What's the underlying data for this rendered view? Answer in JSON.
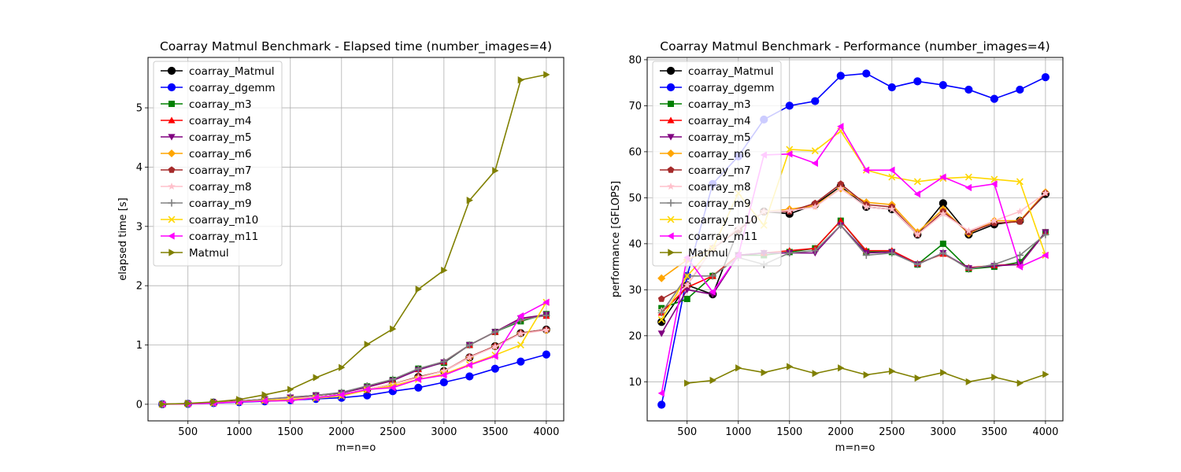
{
  "chart_data": [
    {
      "type": "line",
      "title": "Coarray Matmul Benchmark - Elapsed time (number_images=4)",
      "xlabel": "m=n=o",
      "ylabel": "elapsed time [s]",
      "xlim": [
        110,
        4170
      ],
      "ylim": [
        -0.28,
        5.85
      ],
      "xticks": [
        500,
        1000,
        1500,
        2000,
        2500,
        3000,
        3500,
        4000
      ],
      "yticks": [
        0,
        1,
        2,
        3,
        4,
        5
      ],
      "grid": true,
      "legend_position": "upper-left",
      "x": [
        250,
        500,
        750,
        1000,
        1250,
        1500,
        1750,
        2000,
        2250,
        2500,
        2750,
        3000,
        3250,
        3500,
        3750,
        4000
      ],
      "series": [
        {
          "name": "coarray_Matmul",
          "color": "#000000",
          "marker": "circle",
          "values": [
            0.001,
            0.008,
            0.028,
            0.045,
            0.067,
            0.094,
            0.12,
            0.16,
            0.25,
            0.34,
            0.46,
            0.56,
            0.79,
            0.98,
            1.2,
            1.26
          ]
        },
        {
          "name": "coarray_dgemm",
          "color": "#0000ff",
          "marker": "circle",
          "values": [
            0.001,
            0.006,
            0.02,
            0.035,
            0.05,
            0.07,
            0.09,
            0.11,
            0.15,
            0.22,
            0.28,
            0.37,
            0.47,
            0.6,
            0.72,
            0.84
          ]
        },
        {
          "name": "coarray_m3",
          "color": "#008000",
          "marker": "square",
          "values": [
            0.001,
            0.009,
            0.025,
            0.053,
            0.083,
            0.11,
            0.15,
            0.19,
            0.3,
            0.41,
            0.6,
            0.7,
            1.0,
            1.22,
            1.4,
            1.52
          ]
        },
        {
          "name": "coarray_m4",
          "color": "#ff0000",
          "marker": "triangle-up",
          "values": [
            0.001,
            0.009,
            0.026,
            0.053,
            0.082,
            0.11,
            0.15,
            0.19,
            0.29,
            0.4,
            0.59,
            0.72,
            1.0,
            1.22,
            1.45,
            1.49
          ]
        },
        {
          "name": "coarray_m5",
          "color": "#800080",
          "marker": "triangle-down",
          "values": [
            0.001,
            0.009,
            0.029,
            0.054,
            0.083,
            0.115,
            0.15,
            0.19,
            0.29,
            0.4,
            0.58,
            0.71,
            1.0,
            1.22,
            1.45,
            1.51
          ]
        },
        {
          "name": "coarray_m6",
          "color": "#ffa500",
          "marker": "diamond",
          "values": [
            0.001,
            0.007,
            0.024,
            0.045,
            0.067,
            0.093,
            0.12,
            0.16,
            0.25,
            0.34,
            0.46,
            0.56,
            0.79,
            0.98,
            1.2,
            1.25
          ]
        },
        {
          "name": "coarray_m7",
          "color": "#a52a2a",
          "marker": "pentagon",
          "values": [
            0.001,
            0.008,
            0.026,
            0.045,
            0.067,
            0.093,
            0.12,
            0.16,
            0.24,
            0.34,
            0.46,
            0.56,
            0.8,
            0.98,
            1.2,
            1.26
          ]
        },
        {
          "name": "coarray_m8",
          "color": "#ffc0cb",
          "marker": "star",
          "values": [
            0.001,
            0.008,
            0.026,
            0.045,
            0.067,
            0.094,
            0.12,
            0.16,
            0.25,
            0.34,
            0.45,
            0.56,
            0.79,
            0.97,
            1.19,
            1.25
          ]
        },
        {
          "name": "coarray_m9",
          "color": "#808080",
          "marker": "plus",
          "values": [
            0.001,
            0.008,
            0.024,
            0.048,
            0.085,
            0.12,
            0.15,
            0.2,
            0.31,
            0.42,
            0.6,
            0.72,
            1.0,
            1.22,
            1.42,
            1.5
          ]
        },
        {
          "name": "coarray_m10",
          "color": "#ffd700",
          "marker": "x",
          "values": [
            0.001,
            0.008,
            0.025,
            0.045,
            0.065,
            0.085,
            0.1,
            0.14,
            0.24,
            0.31,
            0.42,
            0.51,
            0.67,
            0.83,
            1.0,
            1.72
          ]
        },
        {
          "name": "coarray_m11",
          "color": "#ff00ff",
          "marker": "triangle-left",
          "values": [
            0.001,
            0.006,
            0.02,
            0.041,
            0.055,
            0.061,
            0.11,
            0.16,
            0.25,
            0.28,
            0.42,
            0.49,
            0.66,
            0.81,
            1.49,
            1.72
          ]
        },
        {
          "name": "Matmul",
          "color": "#808000",
          "marker": "triangle-right",
          "values": [
            0.001,
            0.015,
            0.04,
            0.08,
            0.16,
            0.25,
            0.45,
            0.62,
            1.01,
            1.27,
            1.94,
            2.26,
            3.44,
            3.94,
            5.47,
            5.56
          ]
        }
      ]
    },
    {
      "type": "line",
      "title": "Coarray Matmul Benchmark - Performance (number_images=4)",
      "xlabel": "m=n=o",
      "ylabel": "performance [GFLOPS]",
      "xlim": [
        110,
        4170
      ],
      "ylim": [
        1.5,
        80.5
      ],
      "xticks": [
        500,
        1000,
        1500,
        2000,
        2500,
        3000,
        3500,
        4000
      ],
      "yticks": [
        10,
        20,
        30,
        40,
        50,
        60,
        70,
        80
      ],
      "grid": true,
      "legend_position": "upper-left",
      "x": [
        250,
        500,
        750,
        1000,
        1250,
        1500,
        1750,
        2000,
        2250,
        2500,
        2750,
        3000,
        3250,
        3500,
        3750,
        4000
      ],
      "series": [
        {
          "name": "coarray_Matmul",
          "color": "#000000",
          "marker": "circle",
          "values": [
            23,
            31,
            29,
            43,
            47,
            46.5,
            48.5,
            52.5,
            48,
            47.5,
            42,
            48.8,
            42,
            44.2,
            45,
            50.8
          ]
        },
        {
          "name": "coarray_dgemm",
          "color": "#0000ff",
          "marker": "circle",
          "values": [
            5,
            33,
            53,
            59,
            67,
            70,
            71,
            76.5,
            77,
            74,
            75.3,
            74.5,
            73.5,
            71.5,
            73.5,
            76.2
          ]
        },
        {
          "name": "coarray_m3",
          "color": "#008000",
          "marker": "square",
          "values": [
            26,
            28,
            33,
            37.5,
            37.5,
            38.2,
            39,
            45,
            38.3,
            38.2,
            35.5,
            40,
            34.5,
            35,
            36,
            42.5
          ]
        },
        {
          "name": "coarray_m4",
          "color": "#ff0000",
          "marker": "triangle-up",
          "values": [
            25,
            30.5,
            33,
            37.5,
            38,
            38.5,
            39,
            45,
            38.5,
            38.5,
            35.7,
            37.8,
            34.8,
            35.3,
            35.5,
            42.5
          ]
        },
        {
          "name": "coarray_m5",
          "color": "#800080",
          "marker": "triangle-down",
          "values": [
            20.5,
            30,
            29,
            37.5,
            38,
            38,
            38,
            44,
            38,
            38.2,
            35.5,
            38,
            34.7,
            35.2,
            35.5,
            42.5
          ]
        },
        {
          "name": "coarray_m6",
          "color": "#ffa500",
          "marker": "diamond",
          "values": [
            32.5,
            36.5,
            39,
            43,
            47,
            47.5,
            48.3,
            52,
            49,
            48.5,
            42.5,
            47.5,
            42.2,
            45,
            45,
            51.2
          ]
        },
        {
          "name": "coarray_m7",
          "color": "#a52a2a",
          "marker": "pentagon",
          "values": [
            28,
            31,
            39,
            43,
            47,
            47,
            48.8,
            53,
            48.5,
            48,
            42,
            47,
            42.5,
            44.5,
            44.8,
            51
          ]
        },
        {
          "name": "coarray_m8",
          "color": "#ffc0cb",
          "marker": "star",
          "values": [
            25.5,
            31,
            39,
            43.5,
            47,
            47.2,
            48,
            52,
            48,
            47.5,
            42,
            46.5,
            42.8,
            45,
            47,
            51
          ]
        },
        {
          "name": "coarray_m9",
          "color": "#808080",
          "marker": "plus",
          "values": [
            25,
            33,
            33,
            37,
            35.5,
            38,
            38.5,
            44,
            37.5,
            38,
            35.5,
            38,
            34.5,
            35.5,
            37.5,
            42
          ]
        },
        {
          "name": "coarray_m10",
          "color": "#ffd700",
          "marker": "x",
          "values": [
            23.5,
            33,
            39,
            51,
            44,
            60.5,
            60.2,
            64.5,
            56,
            54.5,
            53.5,
            54.2,
            54.5,
            54,
            53.5,
            37.5
          ]
        },
        {
          "name": "coarray_m11",
          "color": "#ff00ff",
          "marker": "triangle-left",
          "values": [
            7.5,
            37,
            29.5,
            37.5,
            59.3,
            59.5,
            57.5,
            65.5,
            56,
            56,
            50.8,
            54.5,
            52.2,
            53,
            35,
            37.5
          ]
        },
        {
          "name": "Matmul",
          "color": "#808000",
          "marker": "triangle-right",
          "values": [
            null,
            9.7,
            10.3,
            13,
            12,
            13.3,
            11.8,
            13,
            11.5,
            12.3,
            10.8,
            12,
            10,
            11,
            9.7,
            11.6
          ]
        }
      ]
    }
  ]
}
